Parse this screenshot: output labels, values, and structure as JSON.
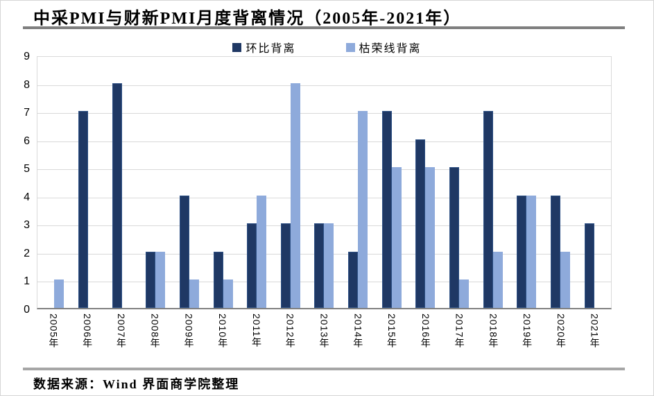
{
  "page": {
    "source_note": "数据来源：Wind 界面商学院整理",
    "background": "#ffffff",
    "rule_color_title": "#7f7f7f",
    "rule_color_footer": "#a6a6a6"
  },
  "chart_data": {
    "type": "bar",
    "title": "中采PMI与财新PMI月度背离情况（2005年-2021年）",
    "xlabel": "",
    "ylabel": "",
    "categories": [
      "2005年",
      "2006年",
      "2007年",
      "2008年",
      "2009年",
      "2010年",
      "2011年",
      "2012年",
      "2013年",
      "2014年",
      "2015年",
      "2016年",
      "2017年",
      "2018年",
      "2019年",
      "2020年",
      "2021年"
    ],
    "series": [
      {
        "name": "环比背离",
        "color": "#1f3864",
        "border_color": "#2e5185",
        "values": [
          0,
          7,
          8,
          2,
          4,
          2,
          3,
          3,
          3,
          2,
          7,
          6,
          5,
          7,
          4,
          4,
          3
        ]
      },
      {
        "name": "枯荣线背离",
        "color": "#8eaadb",
        "border_color": "#8eaadb",
        "values": [
          1,
          0,
          0,
          2,
          1,
          1,
          4,
          8,
          3,
          7,
          5,
          5,
          1,
          2,
          4,
          2,
          0
        ]
      }
    ],
    "ylim": [
      0,
      9
    ],
    "yticks": [
      0,
      1,
      2,
      3,
      4,
      5,
      6,
      7,
      8,
      9
    ],
    "grid": "horizontal",
    "gridline_color": "#d9d9d9",
    "axis_line_color": "#808080",
    "legend_position": "top-center"
  }
}
